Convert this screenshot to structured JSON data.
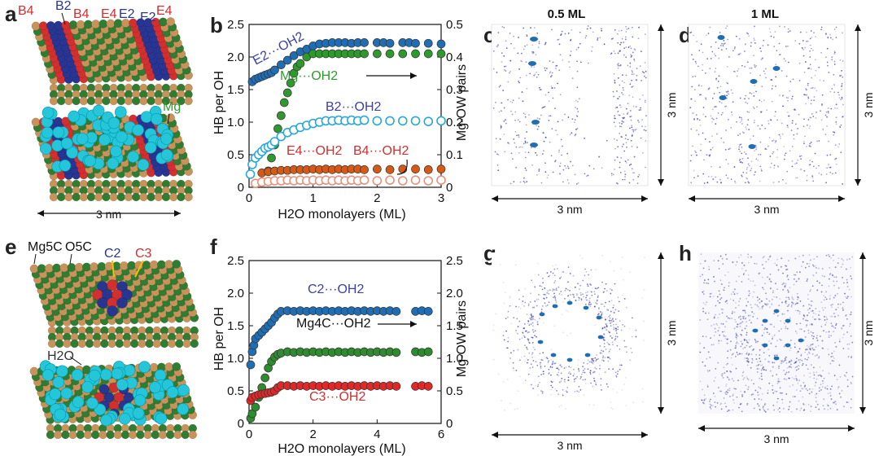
{
  "panel_labels": {
    "a": "a",
    "b": "b",
    "c": "c",
    "d": "d",
    "e": "e",
    "f": "f",
    "g": "g",
    "h": "h"
  },
  "panel_a": {
    "top_labels": {
      "b4_left": "B4",
      "b2": "B2",
      "b4_right": "B4",
      "e4_left": "E4",
      "e2_left": "E2",
      "e2_right": "E2",
      "e4_right": "E4"
    },
    "mg_label": "Mg",
    "scale_label": "3 nm",
    "colors": {
      "mg_atom": "#c8925a",
      "o_atom": "#2e7d32",
      "b_site": "#283593",
      "e_site": "#d32f2f",
      "water": "#26c6da"
    }
  },
  "panel_e": {
    "labels": {
      "mg5c": "Mg5C",
      "o5c": "O5C",
      "c2": "C2",
      "c3": "C3",
      "h2o": "H2O"
    }
  },
  "chart_data": [
    {
      "id": "b",
      "type": "scatter",
      "xlabel": "H2O monolayers (ML)",
      "ylabel": "HB per OH",
      "y2label": "Mg-OW pairs",
      "xlim": [
        0,
        3
      ],
      "ylim": [
        0,
        2.5
      ],
      "y2lim": [
        0,
        0.5
      ],
      "xticks": [
        "0",
        "1",
        "2",
        "3"
      ],
      "yticks": [
        "0",
        "0.5",
        "1.0",
        "1.5",
        "2.0",
        "2.5"
      ],
      "y2ticks": [
        "0",
        "0.1",
        "0.2",
        "0.3",
        "0.4",
        "0.5"
      ],
      "series": [
        {
          "name": "E2···OH2",
          "axis": "left",
          "color": "#1f6eb5",
          "fill": "filled",
          "label_pos": "top-left",
          "x": [
            0.05,
            0.1,
            0.15,
            0.2,
            0.25,
            0.3,
            0.35,
            0.4,
            0.5,
            0.6,
            0.7,
            0.8,
            0.9,
            1.0,
            1.1,
            1.2,
            1.3,
            1.4,
            1.5,
            1.6,
            1.7,
            1.8,
            2.0,
            2.1,
            2.2,
            2.4,
            2.5,
            2.6,
            2.8,
            3.0
          ],
          "y": [
            1.62,
            1.66,
            1.68,
            1.7,
            1.72,
            1.74,
            1.76,
            1.8,
            1.88,
            1.95,
            2.02,
            2.08,
            2.12,
            2.17,
            2.2,
            2.21,
            2.22,
            2.22,
            2.22,
            2.21,
            2.22,
            2.22,
            2.22,
            2.22,
            2.21,
            2.22,
            2.22,
            2.21,
            2.21,
            2.2
          ]
        },
        {
          "name": "Mg···OH2",
          "axis": "right",
          "color": "#2e9a2e",
          "fill": "filled",
          "label_pos": "right",
          "x": [
            0.3,
            0.35,
            0.4,
            0.45,
            0.5,
            0.55,
            0.6,
            0.65,
            0.7,
            0.75,
            0.8,
            0.9,
            1.0,
            1.1,
            1.2,
            1.3,
            1.4,
            1.5,
            1.6,
            1.7,
            1.8,
            2.0,
            2.2,
            2.4,
            2.6,
            2.8,
            3.0
          ],
          "y": [
            0.05,
            0.09,
            0.13,
            0.18,
            0.22,
            0.26,
            0.29,
            0.32,
            0.35,
            0.37,
            0.38,
            0.4,
            0.41,
            0.41,
            0.41,
            0.41,
            0.41,
            0.41,
            0.41,
            0.41,
            0.41,
            0.41,
            0.41,
            0.41,
            0.41,
            0.41,
            0.41
          ]
        },
        {
          "name": "B2···OH2",
          "axis": "left",
          "color": "#29a8d8",
          "fill": "open",
          "label_pos": "right",
          "x": [
            0.02,
            0.05,
            0.1,
            0.15,
            0.2,
            0.25,
            0.3,
            0.35,
            0.4,
            0.5,
            0.6,
            0.7,
            0.8,
            0.9,
            1.0,
            1.1,
            1.2,
            1.3,
            1.4,
            1.5,
            1.6,
            1.7,
            1.8,
            2.0,
            2.2,
            2.4,
            2.6,
            2.8,
            3.0
          ],
          "y": [
            0.2,
            0.35,
            0.45,
            0.5,
            0.55,
            0.6,
            0.62,
            0.65,
            0.7,
            0.78,
            0.84,
            0.88,
            0.92,
            0.95,
            0.98,
            1.0,
            1.02,
            1.02,
            1.03,
            1.02,
            1.03,
            1.02,
            1.03,
            1.02,
            1.02,
            1.02,
            1.02,
            1.01,
            1.02
          ]
        },
        {
          "name": "E4···OH2",
          "axis": "left",
          "color": "#d75a14",
          "fill": "filled",
          "label_pos": "center",
          "x": [
            0.2,
            0.3,
            0.4,
            0.5,
            0.6,
            0.7,
            0.8,
            0.9,
            1.0,
            1.1,
            1.2,
            1.3,
            1.4,
            1.5,
            1.6,
            1.7,
            1.8,
            2.0,
            2.2,
            2.4,
            2.6,
            2.8,
            3.0
          ],
          "y": [
            0.22,
            0.24,
            0.25,
            0.26,
            0.26,
            0.27,
            0.27,
            0.27,
            0.28,
            0.27,
            0.28,
            0.27,
            0.28,
            0.27,
            0.28,
            0.28,
            0.27,
            0.28,
            0.27,
            0.28,
            0.28,
            0.27,
            0.28
          ]
        },
        {
          "name": "B4···OH2",
          "axis": "left",
          "color": "#e8907a",
          "fill": "open",
          "label_pos": "right",
          "x": [
            0.1,
            0.2,
            0.3,
            0.4,
            0.5,
            0.6,
            0.7,
            0.8,
            0.9,
            1.0,
            1.1,
            1.2,
            1.3,
            1.4,
            1.5,
            1.6,
            1.7,
            1.8,
            2.0,
            2.2,
            2.4,
            2.6,
            2.8,
            3.0
          ],
          "y": [
            0.06,
            0.08,
            0.09,
            0.1,
            0.1,
            0.11,
            0.1,
            0.11,
            0.1,
            0.11,
            0.1,
            0.11,
            0.1,
            0.11,
            0.1,
            0.11,
            0.1,
            0.11,
            0.1,
            0.11,
            0.1,
            0.11,
            0.1,
            0.11
          ]
        }
      ]
    },
    {
      "id": "f",
      "type": "scatter",
      "xlabel": "H2O monolayers (ML)",
      "ylabel": "HB per OH",
      "y2label": "Mg-OW pairs",
      "xlim": [
        0,
        6
      ],
      "ylim": [
        0,
        2.5
      ],
      "y2lim": [
        0,
        2.5
      ],
      "xticks": [
        "0",
        "2",
        "4",
        "6"
      ],
      "yticks": [
        "0",
        "0.5",
        "1.0",
        "1.5",
        "2.0",
        "2.5"
      ],
      "y2ticks": [
        "0",
        "0.5",
        "1.0",
        "1.5",
        "2.0",
        "2.5"
      ],
      "series": [
        {
          "name": "C2···OH2",
          "axis": "left",
          "color": "#1f6eb5",
          "fill": "filled",
          "label_pos": "top",
          "x": [
            0.05,
            0.1,
            0.15,
            0.2,
            0.3,
            0.4,
            0.5,
            0.6,
            0.7,
            0.8,
            0.9,
            1.0,
            1.2,
            1.4,
            1.6,
            1.8,
            2.0,
            2.2,
            2.4,
            2.6,
            2.8,
            3.0,
            3.2,
            3.4,
            3.6,
            3.8,
            4.0,
            4.2,
            4.4,
            4.6,
            5.2,
            5.4,
            5.6
          ],
          "y": [
            0.9,
            1.1,
            1.2,
            1.3,
            1.35,
            1.4,
            1.45,
            1.5,
            1.55,
            1.62,
            1.68,
            1.72,
            1.73,
            1.72,
            1.73,
            1.72,
            1.73,
            1.72,
            1.73,
            1.72,
            1.73,
            1.72,
            1.73,
            1.72,
            1.73,
            1.72,
            1.73,
            1.72,
            1.73,
            1.72,
            1.72,
            1.73,
            1.72
          ]
        },
        {
          "name": "Mg4C···OH2",
          "axis": "right",
          "color": "#2e8b2e",
          "fill": "filled",
          "label_pos": "right",
          "x": [
            0.05,
            0.1,
            0.2,
            0.3,
            0.4,
            0.5,
            0.6,
            0.7,
            0.8,
            0.9,
            1.0,
            1.2,
            1.4,
            1.6,
            1.8,
            2.0,
            2.2,
            2.4,
            2.6,
            2.8,
            3.0,
            3.2,
            3.4,
            3.6,
            3.8,
            4.0,
            4.2,
            4.4,
            4.6,
            5.2,
            5.4,
            5.6
          ],
          "y": [
            0.08,
            0.15,
            0.25,
            0.4,
            0.55,
            0.7,
            0.85,
            0.95,
            1.02,
            1.06,
            1.08,
            1.1,
            1.09,
            1.1,
            1.09,
            1.1,
            1.09,
            1.1,
            1.09,
            1.1,
            1.09,
            1.1,
            1.09,
            1.1,
            1.09,
            1.1,
            1.09,
            1.1,
            1.09,
            1.1,
            1.09,
            1.1
          ]
        },
        {
          "name": "C3···OH2",
          "axis": "left",
          "color": "#e02828",
          "fill": "filled",
          "label_pos": "bottom",
          "x": [
            0.05,
            0.1,
            0.2,
            0.3,
            0.4,
            0.5,
            0.6,
            0.7,
            0.8,
            0.9,
            1.0,
            1.2,
            1.4,
            1.6,
            1.8,
            2.0,
            2.2,
            2.4,
            2.6,
            2.8,
            3.0,
            3.2,
            3.4,
            3.6,
            3.8,
            4.0,
            4.2,
            4.4,
            4.6,
            5.2,
            5.4,
            5.6
          ],
          "y": [
            0.35,
            0.4,
            0.42,
            0.44,
            0.45,
            0.46,
            0.47,
            0.48,
            0.5,
            0.55,
            0.58,
            0.58,
            0.57,
            0.58,
            0.57,
            0.58,
            0.57,
            0.58,
            0.57,
            0.58,
            0.57,
            0.58,
            0.57,
            0.58,
            0.57,
            0.58,
            0.57,
            0.58,
            0.57,
            0.57,
            0.58,
            0.57
          ]
        }
      ]
    }
  ],
  "density_maps": {
    "c": {
      "title": "0.5 ML",
      "width_label": "3 nm",
      "height_label": "3 nm"
    },
    "d": {
      "title": "1 ML",
      "width_label": "3 nm",
      "height_label": "3 nm"
    },
    "g": {
      "width_label": "3 nm",
      "height_label": "3 nm"
    },
    "h": {
      "width_label": "3 nm",
      "height_label": "3 nm"
    },
    "colors": {
      "density": "#3b3fa8",
      "highlight": "#1f6eb5"
    }
  }
}
